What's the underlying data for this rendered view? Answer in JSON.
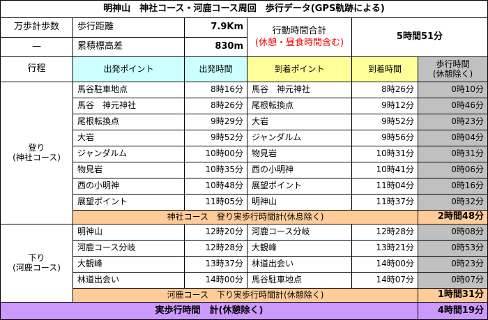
{
  "title": "明神山　神社コース・河鹿コース周回　歩行データ(GPS軌跡による)",
  "summary": {
    "pedometer_label": "万歩計歩数",
    "pedometer_value": "—",
    "distance_label": "歩行距離",
    "distance_value": "7.9Km",
    "elevation_label": "累積標高差",
    "elevation_value": "830m",
    "total_time_label": "行動時間合計",
    "total_time_note": "(休憩・昼食時間含む)",
    "total_time_value": "5時間51分"
  },
  "headers": {
    "stage": "行程",
    "depart_point": "出発ポイント",
    "depart_time": "出発時間",
    "arrive_point": "到着ポイント",
    "arrive_time": "到着時間",
    "walk_time_1": "歩行時間",
    "walk_time_2": "(休憩除く)"
  },
  "ascent": {
    "label_1": "登り",
    "label_2": "(神社コース)",
    "rows": [
      {
        "from": "馬谷駐車地点",
        "dep": "8時16分",
        "to": "馬谷　神元神社",
        "arr": "8時26分",
        "walk": "0時10分"
      },
      {
        "from": "馬谷　神元神社",
        "dep": "8時26分",
        "to": "尾根転換点",
        "arr": "9時12分",
        "walk": "0時46分"
      },
      {
        "from": "尾根転換点",
        "dep": "9時29分",
        "to": "大岩",
        "arr": "9時52分",
        "walk": "0時23分"
      },
      {
        "from": "大岩",
        "dep": "9時52分",
        "to": "ジャンダルム",
        "arr": "9時56分",
        "walk": "0時04分"
      },
      {
        "from": "ジャンダルム",
        "dep": "10時00分",
        "to": "物見岩",
        "arr": "10時31分",
        "walk": "0時31分"
      },
      {
        "from": "物見岩",
        "dep": "10時35分",
        "to": "西の小明神",
        "arr": "10時41分",
        "walk": "0時06分"
      },
      {
        "from": "西の小明神",
        "dep": "10時48分",
        "to": "展望ポイント",
        "arr": "11時04分",
        "walk": "0時16分"
      },
      {
        "from": "展望ポイント",
        "dep": "11時05分",
        "to": "明神山",
        "arr": "11時37分",
        "walk": "0時32分"
      }
    ],
    "subtotal_label": "神社コース　登り実歩行時間計(休息除く)",
    "subtotal_value": "2時間48分"
  },
  "descent": {
    "label_1": "下り",
    "label_2": "(河鹿コース)",
    "rows": [
      {
        "from": "明神山",
        "dep": "12時20分",
        "to": "河鹿コース分岐",
        "arr": "12時28分",
        "walk": "0時08分"
      },
      {
        "from": "河鹿コース分岐",
        "dep": "12時28分",
        "to": "大観峰",
        "arr": "13時21分",
        "walk": "0時53分"
      },
      {
        "from": "大観峰",
        "dep": "13時37分",
        "to": "林道出会い",
        "arr": "14時00分",
        "walk": "0時23分"
      },
      {
        "from": "林道出会い",
        "dep": "14時00分",
        "to": "馬谷駐車地点",
        "arr": "14時07分",
        "walk": "0時07分"
      }
    ],
    "subtotal_label": "河鹿コース　下り実歩行時間計(休憩除く)",
    "subtotal_value": "1時間31分"
  },
  "total": {
    "label": "実歩行時間　計(休憩除く)",
    "value": "4時間19分"
  },
  "colors": {
    "depart_header": "#ccffff",
    "arrive_header": "#ffff99",
    "walk_column": "#c0c0c0",
    "subtotal_row": "#ffcc99",
    "total_row": "#cc99ff",
    "note_text": "#ff0000"
  }
}
